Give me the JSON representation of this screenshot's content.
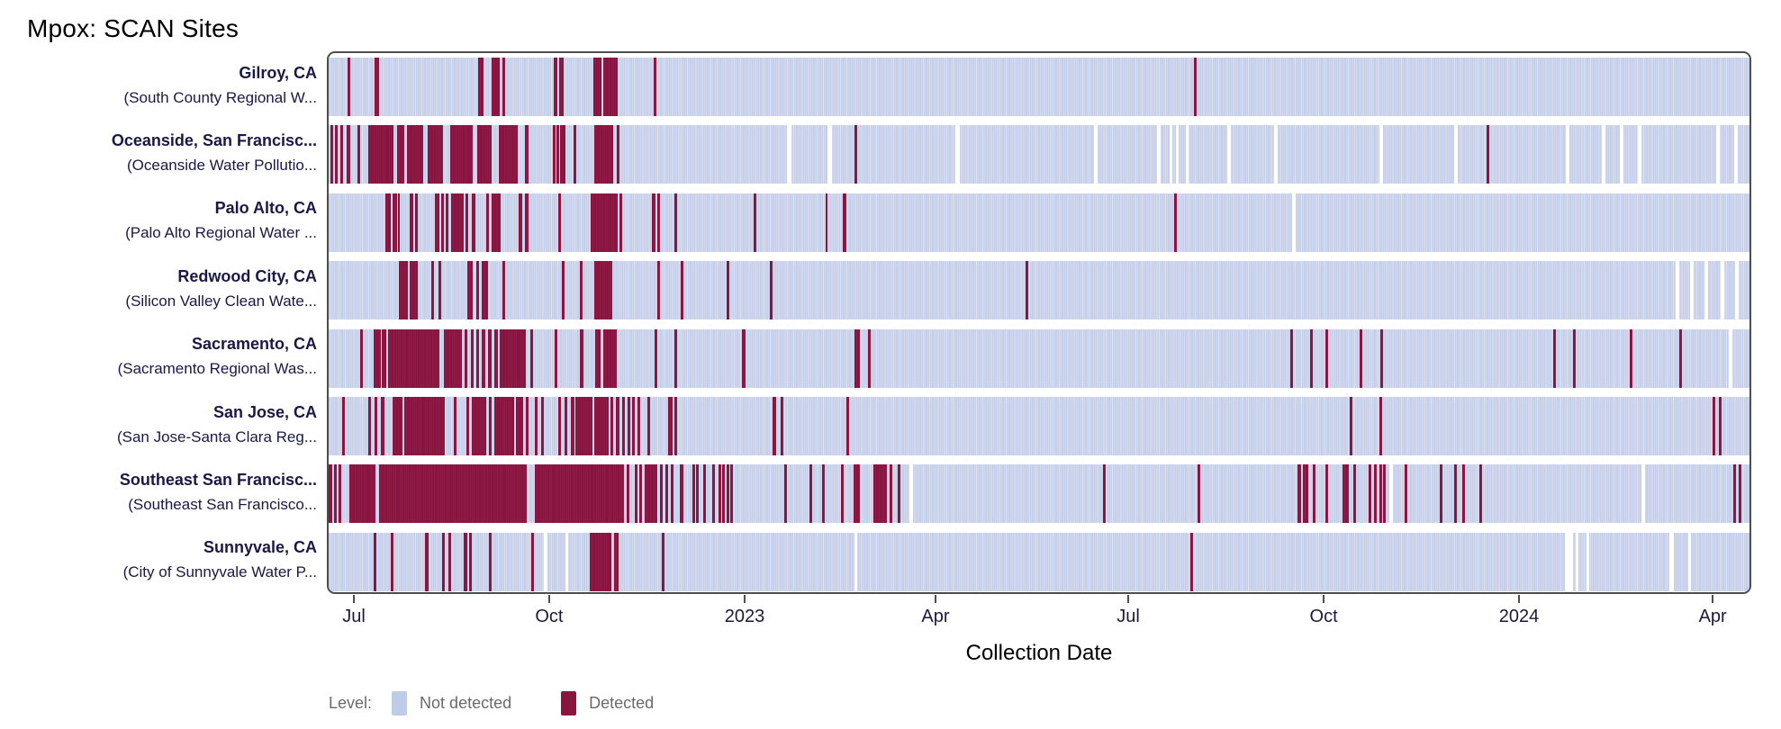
{
  "page": {
    "title": "Mpox: SCAN Sites"
  },
  "x_axis": {
    "title": "Collection Date"
  },
  "legend": {
    "title": "Level:",
    "items": [
      {
        "name": "not-detected",
        "label": "Not detected",
        "color": "#bfcce9"
      },
      {
        "name": "detected",
        "label": "Detected",
        "color": "#8a1440"
      }
    ]
  },
  "colors": {
    "not_detected_base": "#c6cfe9",
    "not_detected_stripe": "#dde3f2",
    "detected": "#8a1440",
    "plot_border": "#4d4d4d",
    "row_label_text": "#191945",
    "axis_text": "#1a1a3a",
    "legend_text": "#6a6a6a"
  },
  "chart_data": {
    "type": "heatmap",
    "title": "Mpox: SCAN Sites",
    "xlabel": "Collection Date",
    "legend_title": "Level:",
    "legend_entries": [
      "Not detected",
      "Detected"
    ],
    "x_range_note": "timeline spans roughly late June 2022 to mid April 2024; white slits are dates with no sample",
    "segment_units": "each segment is [left_percent, width_percent] of the x axis; 1 percent is about 6.6 days",
    "x_ticks": [
      {
        "label": "Jul",
        "pct": 1.9
      },
      {
        "label": "Oct",
        "pct": 15.61
      },
      {
        "label": "2023",
        "pct": 29.33
      },
      {
        "label": "Apr",
        "pct": 42.73
      },
      {
        "label": "Jul",
        "pct": 56.26
      },
      {
        "label": "Oct",
        "pct": 69.98
      },
      {
        "label": "2024",
        "pct": 83.69
      },
      {
        "label": "Apr",
        "pct": 97.29
      }
    ],
    "rows": [
      {
        "city": "Gilroy, CA",
        "facility": "(South County Regional W...",
        "detected": [
          [
            1.33,
            0.19
          ],
          [
            3.22,
            0.32
          ],
          [
            10.49,
            0.38
          ],
          [
            11.5,
            0.51
          ],
          [
            12.2,
            0.19
          ],
          [
            15.87,
            0.25
          ],
          [
            16.25,
            0.32
          ],
          [
            18.65,
            0.57
          ],
          [
            19.34,
            1.01
          ],
          [
            22.88,
            0.19
          ],
          [
            60.87,
            0.19
          ]
        ],
        "gaps": []
      },
      {
        "city": "Oceanside, San Francisc...",
        "facility": "(Oceanside Water Pollutio...",
        "detected": [
          [
            0.13,
            0.19
          ],
          [
            0.44,
            0.19
          ],
          [
            0.82,
            0.19
          ],
          [
            1.26,
            0.25
          ],
          [
            2.02,
            0.19
          ],
          [
            2.78,
            1.77
          ],
          [
            4.8,
            0.51
          ],
          [
            5.5,
            1.14
          ],
          [
            6.95,
            1.07
          ],
          [
            8.53,
            1.58
          ],
          [
            10.43,
            1.01
          ],
          [
            11.95,
            1.39
          ],
          [
            13.84,
            0.25
          ],
          [
            15.8,
            0.19
          ],
          [
            16.06,
            0.13
          ],
          [
            16.31,
            0.38
          ],
          [
            17.26,
            0.19
          ],
          [
            18.71,
            1.33
          ],
          [
            20.29,
            0.19
          ],
          [
            36.98,
            0.19
          ],
          [
            81.48,
            0.19
          ]
        ],
        "gaps": [
          [
            32.24,
            0.32
          ],
          [
            35.08,
            0.32
          ],
          [
            44.12,
            0.32
          ],
          [
            53.86,
            0.25
          ],
          [
            58.28,
            0.25
          ],
          [
            59.17,
            0.19
          ],
          [
            59.61,
            0.19
          ],
          [
            60.3,
            0.25
          ],
          [
            63.27,
            0.25
          ],
          [
            66.56,
            0.25
          ],
          [
            73.96,
            0.25
          ],
          [
            79.2,
            0.25
          ],
          [
            87.1,
            0.25
          ],
          [
            89.63,
            0.25
          ],
          [
            90.9,
            0.25
          ],
          [
            92.16,
            0.25
          ],
          [
            97.66,
            0.25
          ],
          [
            98.93,
            0.25
          ]
        ]
      },
      {
        "city": "Palo Alto, CA",
        "facility": "(Palo Alto Regional Water ...",
        "detected": [
          [
            3.98,
            0.38
          ],
          [
            4.49,
            0.32
          ],
          [
            4.87,
            0.13
          ],
          [
            5.69,
            0.25
          ],
          [
            6.07,
            0.19
          ],
          [
            7.46,
            0.32
          ],
          [
            7.9,
            0.19
          ],
          [
            8.22,
            0.19
          ],
          [
            8.6,
            0.88
          ],
          [
            9.61,
            0.19
          ],
          [
            10.05,
            0.25
          ],
          [
            11.06,
            0.25
          ],
          [
            11.44,
            0.19
          ],
          [
            11.69,
            0.44
          ],
          [
            13.4,
            0.25
          ],
          [
            13.84,
            0.25
          ],
          [
            16.18,
            0.13
          ],
          [
            18.46,
            1.9
          ],
          [
            20.48,
            0.19
          ],
          [
            22.76,
            0.25
          ],
          [
            23.14,
            0.19
          ],
          [
            24.34,
            0.19
          ],
          [
            29.9,
            0.19
          ],
          [
            34.96,
            0.13
          ],
          [
            36.16,
            0.25
          ],
          [
            59.48,
            0.19
          ]
        ],
        "gaps": [
          [
            67.83,
            0.25
          ]
        ]
      },
      {
        "city": "Redwood City, CA",
        "facility": "(Silicon Valley Clean Wate...",
        "detected": [
          [
            4.93,
            0.63
          ],
          [
            5.69,
            0.57
          ],
          [
            7.21,
            0.19
          ],
          [
            7.71,
            0.19
          ],
          [
            9.73,
            0.38
          ],
          [
            10.37,
            0.19
          ],
          [
            10.75,
            0.44
          ],
          [
            12.26,
            0.19
          ],
          [
            16.43,
            0.19
          ],
          [
            17.7,
            0.19
          ],
          [
            18.71,
            1.26
          ],
          [
            23.14,
            0.19
          ],
          [
            24.78,
            0.19
          ],
          [
            28.0,
            0.19
          ],
          [
            31.04,
            0.19
          ],
          [
            49.05,
            0.19
          ]
        ],
        "gaps": [
          [
            94.82,
            0.25
          ],
          [
            95.83,
            0.25
          ],
          [
            96.84,
            0.25
          ],
          [
            97.98,
            0.25
          ],
          [
            98.99,
            0.25
          ]
        ]
      },
      {
        "city": "Sacramento, CA",
        "facility": "(Sacramento Regional Was...",
        "detected": [
          [
            2.21,
            0.19
          ],
          [
            3.16,
            0.51
          ],
          [
            3.73,
            0.32
          ],
          [
            4.17,
            3.6
          ],
          [
            8.09,
            1.26
          ],
          [
            9.54,
            0.25
          ],
          [
            9.99,
            0.19
          ],
          [
            10.37,
            0.19
          ],
          [
            10.75,
            0.25
          ],
          [
            11.19,
            0.25
          ],
          [
            11.69,
            0.25
          ],
          [
            12.01,
            1.9
          ],
          [
            14.22,
            0.19
          ],
          [
            15.93,
            0.19
          ],
          [
            17.7,
            0.25
          ],
          [
            18.77,
            0.38
          ],
          [
            19.34,
            0.95
          ],
          [
            22.95,
            0.19
          ],
          [
            24.34,
            0.19
          ],
          [
            29.08,
            0.25
          ],
          [
            37.04,
            0.32
          ],
          [
            37.99,
            0.19
          ],
          [
            67.7,
            0.19
          ],
          [
            69.09,
            0.19
          ],
          [
            70.16,
            0.19
          ],
          [
            72.57,
            0.19
          ],
          [
            74.02,
            0.19
          ],
          [
            86.16,
            0.19
          ],
          [
            87.61,
            0.19
          ],
          [
            91.59,
            0.19
          ],
          [
            95.07,
            0.19
          ]
        ],
        "gaps": [
          [
            98.55,
            0.25
          ]
        ]
      },
      {
        "city": "San Jose, CA",
        "facility": "(San Jose-Santa Clara Reg...",
        "detected": [
          [
            0.95,
            0.19
          ],
          [
            2.78,
            0.19
          ],
          [
            3.22,
            0.19
          ],
          [
            3.67,
            0.25
          ],
          [
            4.49,
            0.7
          ],
          [
            5.31,
            2.84
          ],
          [
            8.79,
            0.19
          ],
          [
            9.67,
            0.19
          ],
          [
            10.05,
            1.07
          ],
          [
            11.31,
            0.19
          ],
          [
            11.63,
            1.45
          ],
          [
            13.15,
            0.57
          ],
          [
            13.91,
            0.19
          ],
          [
            14.54,
            0.19
          ],
          [
            14.98,
            0.19
          ],
          [
            16.18,
            0.19
          ],
          [
            16.62,
            0.19
          ],
          [
            17.07,
            0.25
          ],
          [
            17.38,
            1.2
          ],
          [
            18.71,
            1.01
          ],
          [
            19.85,
            0.19
          ],
          [
            20.23,
            0.25
          ],
          [
            20.67,
            0.19
          ],
          [
            21.05,
            0.19
          ],
          [
            21.37,
            0.19
          ],
          [
            21.74,
            0.19
          ],
          [
            22.44,
            0.19
          ],
          [
            23.89,
            0.32
          ],
          [
            24.34,
            0.19
          ],
          [
            31.23,
            0.25
          ],
          [
            31.8,
            0.19
          ],
          [
            36.47,
            0.19
          ],
          [
            71.87,
            0.19
          ],
          [
            73.96,
            0.19
          ],
          [
            97.41,
            0.19
          ],
          [
            97.85,
            0.19
          ]
        ],
        "gaps": []
      },
      {
        "city": "Southeast San Francisc...",
        "facility": "(Southeast San Francisco...",
        "detected": [
          [
            0.0,
            0.25
          ],
          [
            0.38,
            0.19
          ],
          [
            0.7,
            0.19
          ],
          [
            1.45,
            1.83
          ],
          [
            3.54,
            10.43
          ],
          [
            14.54,
            6.26
          ],
          [
            20.99,
            0.19
          ],
          [
            21.55,
            0.19
          ],
          [
            21.87,
            0.19
          ],
          [
            22.25,
            0.88
          ],
          [
            23.32,
            0.19
          ],
          [
            23.7,
            0.19
          ],
          [
            24.08,
            0.19
          ],
          [
            24.72,
            0.25
          ],
          [
            25.6,
            0.19
          ],
          [
            25.85,
            0.19
          ],
          [
            26.36,
            0.19
          ],
          [
            26.99,
            0.19
          ],
          [
            27.43,
            0.19
          ],
          [
            27.69,
            0.19
          ],
          [
            28.0,
            0.19
          ],
          [
            28.26,
            0.19
          ],
          [
            32.05,
            0.19
          ],
          [
            33.82,
            0.19
          ],
          [
            34.7,
            0.19
          ],
          [
            36.03,
            0.19
          ],
          [
            36.92,
            0.44
          ],
          [
            38.31,
            0.95
          ],
          [
            39.51,
            0.19
          ],
          [
            40.08,
            0.19
          ],
          [
            54.49,
            0.19
          ],
          [
            61.13,
            0.19
          ],
          [
            68.2,
            0.25
          ],
          [
            68.58,
            0.38
          ],
          [
            69.28,
            0.19
          ],
          [
            70.16,
            0.19
          ],
          [
            71.37,
            0.44
          ],
          [
            72.12,
            0.19
          ],
          [
            73.2,
            0.19
          ],
          [
            73.58,
            0.19
          ],
          [
            73.96,
            0.19
          ],
          [
            74.21,
            0.19
          ],
          [
            75.73,
            0.19
          ],
          [
            78.19,
            0.19
          ],
          [
            79.2,
            0.19
          ],
          [
            79.77,
            0.19
          ],
          [
            80.97,
            0.19
          ],
          [
            98.86,
            0.19
          ],
          [
            99.24,
            0.19
          ]
        ],
        "gaps": [
          [
            40.9,
            0.25
          ],
          [
            74.65,
            0.25
          ],
          [
            92.41,
            0.25
          ]
        ]
      },
      {
        "city": "Sunnyvale, CA",
        "facility": "(City of Sunnyvale Water P...",
        "detected": [
          [
            3.16,
            0.19
          ],
          [
            4.36,
            0.19
          ],
          [
            6.76,
            0.25
          ],
          [
            7.96,
            0.19
          ],
          [
            8.41,
            0.19
          ],
          [
            9.48,
            0.25
          ],
          [
            9.86,
            0.19
          ],
          [
            11.31,
            0.19
          ],
          [
            14.29,
            0.19
          ],
          [
            18.39,
            1.52
          ],
          [
            20.1,
            0.32
          ],
          [
            23.45,
            0.19
          ],
          [
            60.62,
            0.19
          ]
        ],
        "gaps": [
          [
            15.17,
            0.25
          ],
          [
            16.69,
            0.19
          ],
          [
            36.98,
            0.25
          ],
          [
            87.04,
            0.51
          ],
          [
            87.74,
            0.19
          ],
          [
            88.5,
            0.19
          ],
          [
            94.37,
            0.32
          ],
          [
            95.7,
            0.19
          ]
        ]
      }
    ]
  }
}
